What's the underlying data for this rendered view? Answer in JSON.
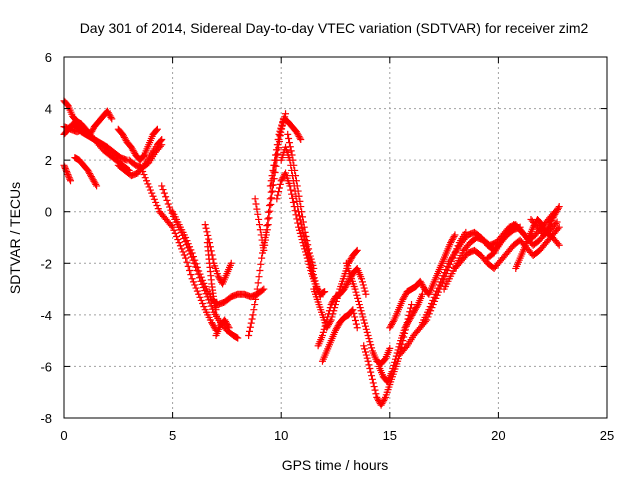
{
  "chart_data": {
    "type": "scatter",
    "title": "Day 301 of 2014, Sidereal Day-to-day VTEC variation (SDTVAR) for receiver zim2",
    "xlabel": "GPS time / hours",
    "ylabel": "SDTVAR / TECUs",
    "xlim": [
      0,
      25
    ],
    "ylim": [
      -8,
      6
    ],
    "xticks": [
      "0",
      "5",
      "10",
      "15",
      "20",
      "25"
    ],
    "yticks": [
      "-8",
      "-6",
      "-4",
      "-2",
      "0",
      "2",
      "4",
      "6"
    ],
    "grid": true,
    "marker": "plus",
    "color": "#ff0000",
    "series": [
      {
        "x": [
          0.0,
          0.2,
          0.4,
          0.6,
          0.8,
          1.0,
          1.2,
          1.4,
          1.6,
          1.8,
          2.0,
          2.2
        ],
        "y": [
          4.3,
          4.1,
          3.7,
          3.5,
          3.4,
          3.2,
          3.0,
          3.3,
          3.5,
          3.7,
          3.9,
          3.6
        ]
      },
      {
        "x": [
          0.0,
          0.3,
          0.6,
          0.9,
          1.2,
          1.5,
          1.8,
          2.1,
          2.4,
          2.7,
          3.0
        ],
        "y": [
          3.3,
          3.2,
          3.1,
          3.2,
          3.0,
          2.7,
          2.4,
          2.2,
          2.0,
          1.8,
          1.6
        ]
      },
      {
        "x": [
          0.0,
          0.2,
          0.4,
          0.6,
          0.8,
          1.0,
          1.2,
          1.4,
          1.6,
          1.8,
          2.0,
          2.3,
          2.6,
          2.9
        ],
        "y": [
          3.0,
          3.2,
          3.4,
          3.3,
          3.1,
          3.0,
          2.9,
          2.8,
          2.7,
          2.6,
          2.5,
          2.3,
          2.1,
          2.0
        ]
      },
      {
        "x": [
          0.0,
          0.15,
          0.3
        ],
        "y": [
          1.8,
          1.5,
          1.2
        ]
      },
      {
        "x": [
          0.5,
          0.7,
          0.9,
          1.1,
          1.3,
          1.5
        ],
        "y": [
          2.1,
          2.0,
          1.8,
          1.6,
          1.3,
          1.0
        ]
      },
      {
        "x": [
          2.5,
          2.7,
          2.9,
          3.1,
          3.3,
          3.5,
          3.7,
          3.9,
          4.1,
          4.3
        ],
        "y": [
          3.2,
          3.0,
          2.7,
          2.5,
          2.2,
          2.0,
          2.2,
          2.6,
          3.0,
          3.2
        ]
      },
      {
        "x": [
          2.5,
          2.8,
          3.1,
          3.4,
          3.7,
          4.0,
          4.3,
          4.5
        ],
        "y": [
          1.8,
          1.6,
          1.4,
          1.5,
          1.8,
          2.2,
          2.6,
          2.8
        ]
      },
      {
        "x": [
          3.0,
          3.3,
          3.6,
          3.9,
          4.2,
          4.5
        ],
        "y": [
          2.0,
          1.8,
          1.7,
          1.9,
          2.3,
          2.6
        ]
      },
      {
        "x": [
          3.5,
          3.8,
          4.1,
          4.4,
          4.7,
          5.0,
          5.3,
          5.6,
          5.9,
          6.2,
          6.5,
          6.8,
          7.0
        ],
        "y": [
          1.8,
          1.2,
          0.6,
          0.0,
          -0.3,
          -0.6,
          -1.2,
          -1.8,
          -2.6,
          -3.2,
          -3.8,
          -4.3,
          -4.6
        ]
      },
      {
        "x": [
          4.5,
          4.8,
          5.1,
          5.4,
          5.7,
          6.0,
          6.3,
          6.6,
          6.9,
          7.2,
          7.5,
          7.8,
          8.0
        ],
        "y": [
          1.0,
          0.3,
          -0.3,
          -0.8,
          -1.4,
          -2.0,
          -2.7,
          -3.3,
          -3.9,
          -4.3,
          -4.6,
          -4.8,
          -4.9
        ]
      },
      {
        "x": [
          5.0,
          5.3,
          5.6,
          5.9,
          6.2,
          6.5,
          6.8,
          7.1,
          7.4,
          7.7,
          8.0,
          8.3,
          8.6,
          8.9,
          9.2
        ],
        "y": [
          0.0,
          -0.5,
          -1.0,
          -1.6,
          -2.3,
          -2.9,
          -3.4,
          -3.6,
          -3.5,
          -3.3,
          -3.2,
          -3.2,
          -3.3,
          -3.2,
          -3.0
        ]
      },
      {
        "x": [
          6.6,
          6.7,
          6.8,
          6.9,
          7.0
        ],
        "y": [
          -1.2,
          -2.0,
          -2.8,
          -3.4,
          -3.8
        ]
      },
      {
        "x": [
          7.0,
          7.2,
          7.4,
          7.6
        ],
        "y": [
          -4.8,
          -4.4,
          -4.2,
          -4.5
        ]
      },
      {
        "x": [
          6.5,
          6.7,
          6.9,
          7.1,
          7.3,
          7.5,
          7.7
        ],
        "y": [
          -0.5,
          -1.2,
          -2.0,
          -2.5,
          -2.8,
          -2.4,
          -2.0
        ]
      },
      {
        "x": [
          8.5,
          8.7,
          8.9,
          9.1,
          9.3,
          9.5,
          9.7,
          9.9,
          10.1
        ],
        "y": [
          -4.8,
          -4.0,
          -3.0,
          -1.8,
          -0.8,
          0.5,
          1.8,
          2.8,
          3.5
        ]
      },
      {
        "x": [
          8.8,
          9.0,
          9.2,
          9.4,
          9.6,
          9.8,
          10.0,
          10.2
        ],
        "y": [
          0.5,
          -0.5,
          -1.5,
          -0.5,
          0.8,
          2.0,
          3.2,
          3.8
        ]
      },
      {
        "x": [
          9.5,
          9.7,
          9.9,
          10.1,
          10.3,
          10.5,
          10.7,
          10.9
        ],
        "y": [
          1.0,
          2.0,
          3.0,
          3.6,
          3.5,
          3.3,
          3.1,
          2.8
        ]
      },
      {
        "x": [
          9.8,
          10.0,
          10.2,
          10.4,
          10.6,
          10.8,
          11.0,
          11.2,
          11.4,
          11.6,
          11.8,
          12.0
        ],
        "y": [
          0.5,
          1.2,
          1.5,
          1.0,
          0.2,
          -0.6,
          -1.2,
          -1.8,
          -2.4,
          -2.9,
          -3.2,
          -3.1
        ]
      },
      {
        "x": [
          10.0,
          10.2,
          10.4,
          10.6,
          10.8,
          11.0,
          11.2,
          11.4,
          11.6,
          11.8
        ],
        "y": [
          2.0,
          2.5,
          2.0,
          1.0,
          0.0,
          -0.8,
          -1.5,
          -2.2,
          -2.8,
          -3.3
        ]
      },
      {
        "x": [
          10.3,
          10.5,
          10.7,
          10.9,
          11.1,
          11.3,
          11.5
        ],
        "y": [
          3.0,
          2.2,
          1.2,
          0.2,
          -0.8,
          -1.6,
          -2.2
        ]
      },
      {
        "x": [
          11.5,
          11.7,
          11.9,
          12.1,
          12.3,
          12.5,
          12.7,
          12.9,
          13.1,
          13.3,
          13.5
        ],
        "y": [
          -3.0,
          -3.5,
          -4.0,
          -4.5,
          -4.2,
          -3.6,
          -3.0,
          -2.5,
          -2.0,
          -1.7,
          -1.5
        ]
      },
      {
        "x": [
          11.7,
          11.9,
          12.1,
          12.3,
          12.5,
          12.7,
          12.9,
          13.1,
          13.3,
          13.5,
          13.7,
          13.9
        ],
        "y": [
          -5.2,
          -4.8,
          -4.2,
          -3.6,
          -3.3,
          -3.2,
          -3.0,
          -2.7,
          -2.4,
          -2.2,
          -2.6,
          -3.2
        ]
      },
      {
        "x": [
          11.9,
          12.1,
          12.3,
          12.5,
          12.7,
          12.9,
          13.1,
          13.3,
          13.5
        ],
        "y": [
          -5.8,
          -5.4,
          -5.0,
          -4.6,
          -4.3,
          -4.1,
          -4.0,
          -3.8,
          -4.5
        ]
      },
      {
        "x": [
          13.0,
          13.2,
          13.4,
          13.6,
          13.8,
          14.0,
          14.2,
          14.4,
          14.6,
          14.8,
          15.0
        ],
        "y": [
          -2.0,
          -2.5,
          -3.0,
          -3.6,
          -4.2,
          -4.8,
          -5.4,
          -5.8,
          -5.9,
          -5.7,
          -5.3
        ]
      },
      {
        "x": [
          13.8,
          14.0,
          14.2,
          14.4,
          14.6,
          14.8,
          15.0,
          15.2,
          15.4,
          15.6,
          15.8,
          16.0
        ],
        "y": [
          -5.2,
          -5.8,
          -6.5,
          -7.2,
          -7.5,
          -7.2,
          -6.7,
          -6.2,
          -5.7,
          -5.0,
          -4.3,
          -3.6
        ]
      },
      {
        "x": [
          14.5,
          14.7,
          14.9,
          15.1,
          15.3,
          15.5,
          15.7,
          15.9,
          16.1,
          16.3,
          16.5
        ],
        "y": [
          -6.0,
          -6.4,
          -6.6,
          -6.2,
          -5.6,
          -5.0,
          -4.5,
          -4.2,
          -3.9,
          -3.6,
          -3.2
        ]
      },
      {
        "x": [
          15.0,
          15.2,
          15.4,
          15.6,
          15.8,
          16.0,
          16.2,
          16.4,
          16.6,
          16.8,
          17.0,
          17.2,
          17.4,
          17.6,
          17.8,
          18.0
        ],
        "y": [
          -4.5,
          -4.2,
          -3.8,
          -3.4,
          -3.1,
          -3.0,
          -2.9,
          -2.7,
          -3.0,
          -3.2,
          -2.8,
          -2.4,
          -2.0,
          -1.6,
          -1.2,
          -0.9
        ]
      },
      {
        "x": [
          15.5,
          15.8,
          16.1,
          16.4,
          16.7,
          17.0,
          17.3,
          17.6,
          17.9,
          18.2,
          18.5
        ],
        "y": [
          -5.5,
          -5.2,
          -4.8,
          -4.5,
          -4.2,
          -3.6,
          -3.0,
          -2.4,
          -1.8,
          -1.2,
          -0.8
        ]
      },
      {
        "x": [
          16.5,
          16.8,
          17.1,
          17.4,
          17.7,
          18.0,
          18.3,
          18.6,
          18.9,
          19.2,
          19.5,
          19.8,
          20.1,
          20.4,
          20.7,
          21.0
        ],
        "y": [
          -4.3,
          -3.8,
          -3.2,
          -2.6,
          -2.0,
          -1.6,
          -1.2,
          -0.9,
          -0.8,
          -1.0,
          -1.3,
          -1.5,
          -1.2,
          -0.9,
          -0.7,
          -0.6
        ]
      },
      {
        "x": [
          17.5,
          17.8,
          18.1,
          18.4,
          18.7,
          19.0,
          19.3,
          19.6,
          19.9,
          20.2,
          20.5,
          20.8,
          21.1,
          21.4,
          21.7,
          22.0,
          22.3,
          22.6
        ],
        "y": [
          -3.0,
          -2.5,
          -2.0,
          -1.5,
          -1.2,
          -1.0,
          -1.1,
          -1.3,
          -1.2,
          -0.9,
          -0.6,
          -0.5,
          -0.8,
          -1.1,
          -0.9,
          -0.6,
          -0.3,
          0.0
        ]
      },
      {
        "x": [
          18.0,
          18.3,
          18.6,
          18.9,
          19.2,
          19.5,
          19.8,
          20.1,
          20.4,
          20.7,
          21.0,
          21.3,
          21.6,
          21.9,
          22.2,
          22.5,
          22.8
        ],
        "y": [
          -2.2,
          -1.9,
          -1.6,
          -1.5,
          -1.7,
          -2.0,
          -2.2,
          -1.9,
          -1.6,
          -1.3,
          -1.1,
          -1.4,
          -1.7,
          -1.5,
          -1.2,
          -0.9,
          -0.6
        ]
      },
      {
        "x": [
          19.5,
          19.8,
          20.1,
          20.4,
          20.7,
          21.0,
          21.3,
          21.6,
          21.9,
          22.2,
          22.5,
          22.8
        ],
        "y": [
          -1.8,
          -1.6,
          -1.2,
          -0.8,
          -0.5,
          -0.7,
          -1.0,
          -1.3,
          -1.1,
          -0.8,
          -1.0,
          -1.3
        ]
      },
      {
        "x": [
          20.8,
          21.0,
          21.2,
          21.4,
          21.6,
          21.8,
          22.0,
          22.2,
          22.4,
          22.6,
          22.8
        ],
        "y": [
          -2.2,
          -1.8,
          -1.4,
          -1.0,
          -0.6,
          -0.3,
          -0.5,
          -0.8,
          -0.4,
          -0.1,
          0.2
        ]
      },
      {
        "x": [
          21.5,
          21.8,
          22.1,
          22.4,
          22.7
        ],
        "y": [
          -0.3,
          -0.6,
          -0.9,
          -0.7,
          -0.4
        ]
      }
    ]
  }
}
